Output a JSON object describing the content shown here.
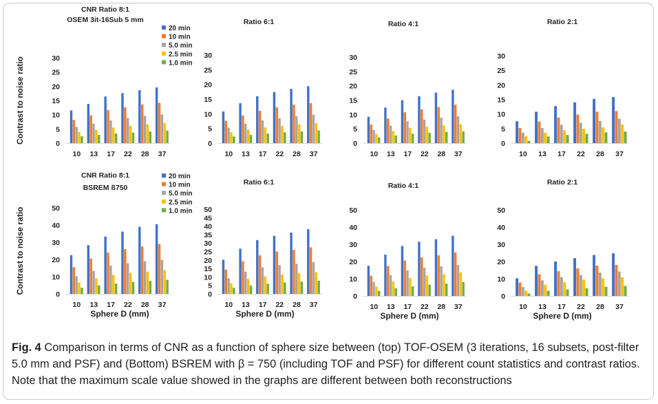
{
  "colors": {
    "20 min": "#4472C4",
    "10 min": "#ED7D31",
    "5.0 min": "#A5A5A5",
    "2.5 min": "#FFC000",
    "1.0 min": "#70AD47"
  },
  "legend": [
    "20 min",
    "10 min",
    "5.0 min",
    "2.5 min",
    "1.0 min"
  ],
  "chart_data": [
    {
      "type": "bar",
      "title": "CNR Ratio 8:1",
      "subtitle": "OSEM 3it-16Sub 5 mm",
      "ylabel": "Contrast to noise ratio",
      "xlabel": "",
      "ylim": [
        0,
        30
      ],
      "yticks": [
        0,
        5,
        10,
        15,
        20,
        25,
        30
      ],
      "categories": [
        "10",
        "13",
        "17",
        "22",
        "28",
        "37"
      ],
      "series": [
        {
          "name": "20 min",
          "values": [
            11.5,
            13.8,
            16.4,
            17.6,
            18.6,
            19.6
          ]
        },
        {
          "name": "10 min",
          "values": [
            8.2,
            9.8,
            11.6,
            12.6,
            13.6,
            14.2
          ]
        },
        {
          "name": "5.0 min",
          "values": [
            5.7,
            6.8,
            8.0,
            8.8,
            9.6,
            10.1
          ]
        },
        {
          "name": "2.5 min",
          "values": [
            3.9,
            4.7,
            5.5,
            6.1,
            6.6,
            7.0
          ]
        },
        {
          "name": "1.0 min",
          "values": [
            2.4,
            2.9,
            3.4,
            3.7,
            4.1,
            4.4
          ]
        }
      ]
    },
    {
      "type": "bar",
      "title": "Ratio 6:1",
      "ylabel": "",
      "xlabel": "",
      "ylim": [
        0,
        30
      ],
      "yticks": [
        0,
        5,
        10,
        15,
        20,
        25,
        30
      ],
      "categories": [
        "10",
        "13",
        "17",
        "22",
        "28",
        "37"
      ],
      "series": [
        {
          "name": "20 min",
          "values": [
            10.8,
            13.6,
            16.0,
            17.4,
            18.5,
            19.4
          ]
        },
        {
          "name": "10 min",
          "values": [
            7.6,
            9.4,
            11.0,
            12.2,
            13.1,
            13.6
          ]
        },
        {
          "name": "5.0 min",
          "values": [
            5.3,
            6.6,
            7.8,
            8.5,
            9.2,
            9.7
          ]
        },
        {
          "name": "2.5 min",
          "values": [
            3.7,
            4.6,
            5.4,
            5.9,
            6.4,
            6.8
          ]
        },
        {
          "name": "1.0 min",
          "values": [
            2.3,
            2.8,
            3.3,
            3.7,
            4.0,
            4.3
          ]
        }
      ]
    },
    {
      "type": "bar",
      "title": "Ratio 4:1",
      "ylabel": "",
      "xlabel": "",
      "ylim": [
        0,
        30
      ],
      "yticks": [
        0,
        5,
        10,
        15,
        20,
        25,
        30
      ],
      "categories": [
        "10",
        "13",
        "17",
        "22",
        "28",
        "37"
      ],
      "series": [
        {
          "name": "20 min",
          "values": [
            9.2,
            12.4,
            15.0,
            16.4,
            17.6,
            18.6
          ]
        },
        {
          "name": "10 min",
          "values": [
            6.5,
            8.6,
            10.8,
            11.8,
            12.6,
            13.4
          ]
        },
        {
          "name": "5.0 min",
          "values": [
            4.6,
            6.1,
            7.6,
            8.2,
            8.9,
            9.4
          ]
        },
        {
          "name": "2.5 min",
          "values": [
            3.1,
            4.2,
            5.3,
            5.7,
            6.2,
            6.6
          ]
        },
        {
          "name": "1.0 min",
          "values": [
            2.0,
            2.7,
            3.3,
            3.6,
            3.9,
            4.1
          ]
        }
      ]
    },
    {
      "type": "bar",
      "title": "Ratio 2:1",
      "ylabel": "",
      "xlabel": "",
      "ylim": [
        0,
        30
      ],
      "yticks": [
        0,
        5,
        10,
        15,
        20,
        25,
        30
      ],
      "categories": [
        "10",
        "13",
        "17",
        "22",
        "28",
        "37"
      ],
      "series": [
        {
          "name": "20 min",
          "values": [
            7.5,
            10.8,
            12.7,
            14.0,
            15.2,
            15.8
          ]
        },
        {
          "name": "10 min",
          "values": [
            5.2,
            7.4,
            8.8,
            9.8,
            10.8,
            11.0
          ]
        },
        {
          "name": "5.0 min",
          "values": [
            3.6,
            5.2,
            6.3,
            7.0,
            7.6,
            8.4
          ]
        },
        {
          "name": "2.5 min",
          "values": [
            2.4,
            3.6,
            4.4,
            4.9,
            5.4,
            6.4
          ]
        },
        {
          "name": "1.0 min",
          "values": [
            0.8,
            2.3,
            2.8,
            3.2,
            3.7,
            4.0
          ]
        }
      ]
    },
    {
      "type": "bar",
      "title": "CNR Ratio 8:1",
      "subtitle": "BSREM ß750",
      "ylabel": "Contrast to noise ratio",
      "xlabel": "Sphere D (mm)",
      "ylim": [
        0,
        50
      ],
      "yticks": [
        0,
        10,
        20,
        30,
        40,
        50
      ],
      "categories": [
        "10",
        "13",
        "17",
        "22",
        "28",
        "37"
      ],
      "series": [
        {
          "name": "20 min",
          "values": [
            22.5,
            28.3,
            33.3,
            36.2,
            39.0,
            40.5
          ]
        },
        {
          "name": "10 min",
          "values": [
            15.5,
            20.6,
            24.0,
            26.0,
            27.5,
            29.0
          ]
        },
        {
          "name": "5.0 min",
          "values": [
            10.3,
            13.4,
            16.4,
            17.8,
            19.0,
            19.8
          ]
        },
        {
          "name": "2.5 min",
          "values": [
            6.6,
            9.0,
            11.0,
            12.2,
            13.0,
            13.8
          ]
        },
        {
          "name": "1.0 min",
          "values": [
            3.6,
            4.9,
            6.0,
            7.0,
            7.5,
            8.2
          ]
        }
      ]
    },
    {
      "type": "bar",
      "title": "Ratio 6:1",
      "ylabel": "",
      "xlabel": "Sphere D (mm)",
      "ylim": [
        0,
        50
      ],
      "yticks": [
        0,
        5,
        10,
        15,
        20,
        25,
        30,
        35,
        40,
        45,
        50
      ],
      "categories": [
        "10",
        "13",
        "17",
        "22",
        "28",
        "37"
      ],
      "series": [
        {
          "name": "20 min",
          "values": [
            20.2,
            26.7,
            31.8,
            34.3,
            36.2,
            38.2
          ]
        },
        {
          "name": "10 min",
          "values": [
            14.3,
            19.3,
            22.8,
            25.0,
            26.0,
            27.5
          ]
        },
        {
          "name": "5.0 min",
          "values": [
            9.2,
            13.1,
            15.7,
            17.0,
            17.8,
            18.8
          ]
        },
        {
          "name": "2.5 min",
          "values": [
            6.2,
            8.8,
            10.3,
            11.4,
            12.2,
            12.8
          ]
        },
        {
          "name": "1.0 min",
          "values": [
            3.6,
            4.9,
            6.0,
            6.8,
            7.2,
            7.8
          ]
        }
      ]
    },
    {
      "type": "bar",
      "title": "Ratio 4:1",
      "ylabel": "",
      "xlabel": "Sphere D (mm)",
      "ylim": [
        0,
        50
      ],
      "yticks": [
        0,
        10,
        20,
        30,
        40,
        50
      ],
      "categories": [
        "10",
        "13",
        "17",
        "22",
        "28",
        "37"
      ],
      "series": [
        {
          "name": "20 min",
          "values": [
            17.5,
            24.0,
            29.0,
            31.5,
            33.0,
            35.0
          ]
        },
        {
          "name": "10 min",
          "values": [
            11.7,
            17.4,
            20.6,
            22.4,
            23.6,
            25.2
          ]
        },
        {
          "name": "5.0 min",
          "values": [
            8.2,
            12.2,
            14.9,
            16.4,
            17.2,
            18.0
          ]
        },
        {
          "name": "2.5 min",
          "values": [
            5.4,
            8.4,
            10.4,
            11.9,
            12.6,
            13.8
          ]
        },
        {
          "name": "1.0 min",
          "values": [
            3.0,
            4.5,
            5.6,
            6.5,
            7.2,
            8.0
          ]
        }
      ]
    },
    {
      "type": "bar",
      "title": "Ratio 2:1",
      "ylabel": "",
      "xlabel": "Sphere D (mm)",
      "ylim": [
        0,
        50
      ],
      "yticks": [
        0,
        10,
        20,
        30,
        40,
        50
      ],
      "categories": [
        "10",
        "13",
        "17",
        "22",
        "28",
        "37"
      ],
      "series": [
        {
          "name": "20 min",
          "values": [
            10.3,
            17.5,
            20.0,
            22.0,
            23.8,
            24.8
          ]
        },
        {
          "name": "10 min",
          "values": [
            7.8,
            12.6,
            14.4,
            16.0,
            17.6,
            18.0
          ]
        },
        {
          "name": "5.0 min",
          "values": [
            5.2,
            9.1,
            11.0,
            12.2,
            13.6,
            14.2
          ]
        },
        {
          "name": "2.5 min",
          "values": [
            3.0,
            6.5,
            8.0,
            9.5,
            10.2,
            10.9
          ]
        },
        {
          "name": "1.0 min",
          "values": [
            1.4,
            3.0,
            3.8,
            4.5,
            5.3,
            5.8
          ]
        }
      ]
    }
  ],
  "caption": {
    "label": "Fig. 4",
    "text": "Comparison in terms of CNR as a function of sphere size between (top) TOF-OSEM (3 iterations, 16 subsets, post-filter 5.0 mm and PSF) and (Bottom) BSREM with β = 750 (including TOF and PSF) for different count statistics and contrast ratios. Note that the maximum scale value showed in the graphs are different between both reconstructions"
  }
}
